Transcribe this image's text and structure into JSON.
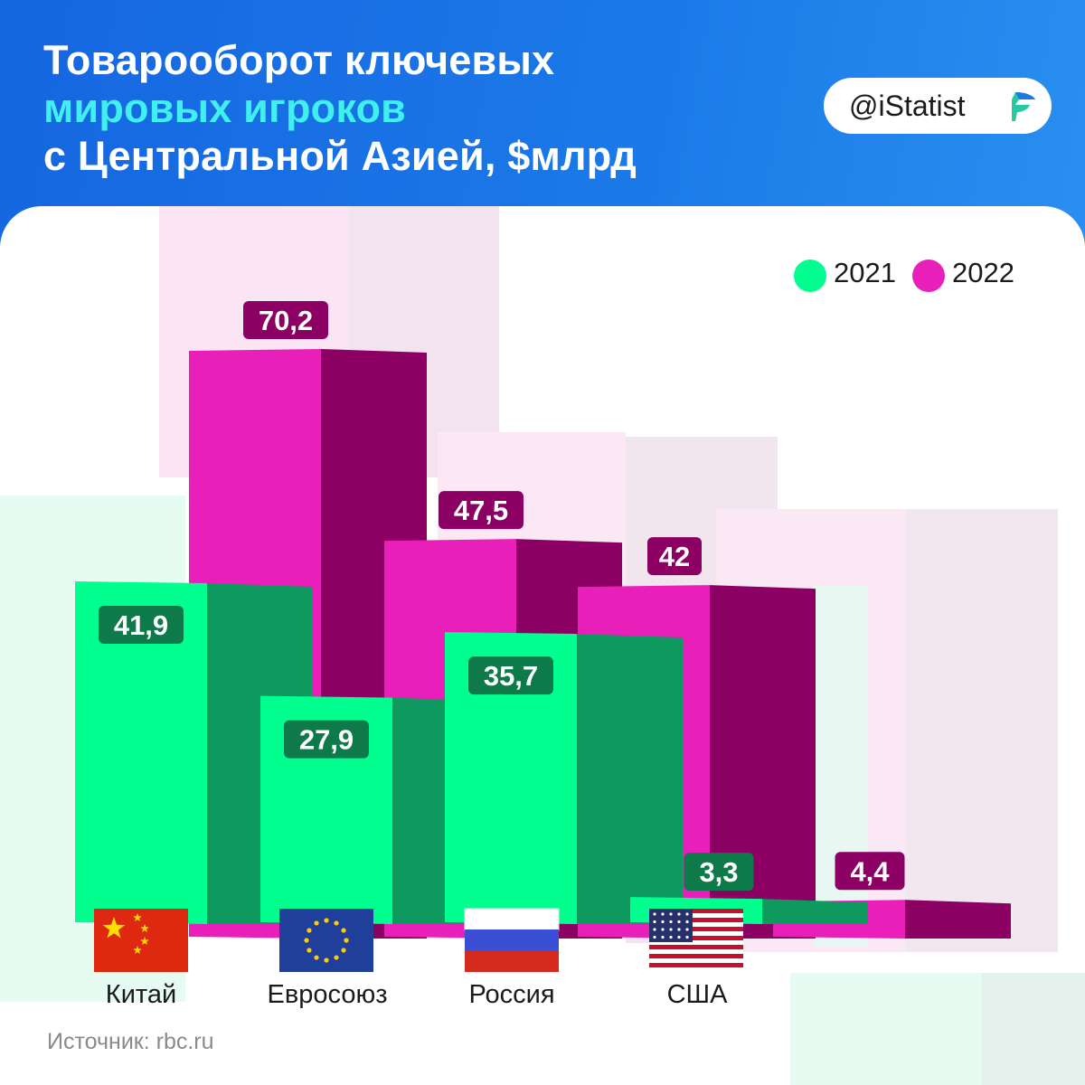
{
  "header": {
    "title_line1": "Товарооборот ключевых",
    "title_line2": "мировых игроков",
    "title_line3": "с Центральной Азией, $млрд",
    "brand": "@iStatist"
  },
  "colors": {
    "s2021": "#00ff8f",
    "s2021_side": "#0e9a5e",
    "s2021_label": "#0e7a4a",
    "s2022": "#e81fb8",
    "s2022_side": "#8b0062",
    "s2022_label": "#8b0062",
    "accent": "#3ff0ee"
  },
  "chart_data": {
    "type": "bar",
    "categories": [
      "Китай",
      "Евросоюз",
      "Россия",
      "США"
    ],
    "series": [
      {
        "name": "2021",
        "values": [
          41.9,
          27.9,
          35.7,
          3.3
        ],
        "labels": [
          "41,9",
          "27,9",
          "35,7",
          "3,3"
        ]
      },
      {
        "name": "2022",
        "values": [
          70.2,
          47.5,
          42,
          4.4
        ],
        "labels": [
          "70,2",
          "47,5",
          "42",
          "4,4"
        ]
      }
    ],
    "legend": {
      "position": "top-right",
      "labels": [
        "2021",
        "2022"
      ]
    },
    "ylim": [
      0,
      75
    ],
    "title": "Товарооборот ключевых мировых игроков с Центральной Азией, $млрд"
  },
  "flags": [
    "china-flag",
    "eu-flag",
    "russia-flag",
    "usa-flag"
  ],
  "source": "Источник: rbc.ru"
}
